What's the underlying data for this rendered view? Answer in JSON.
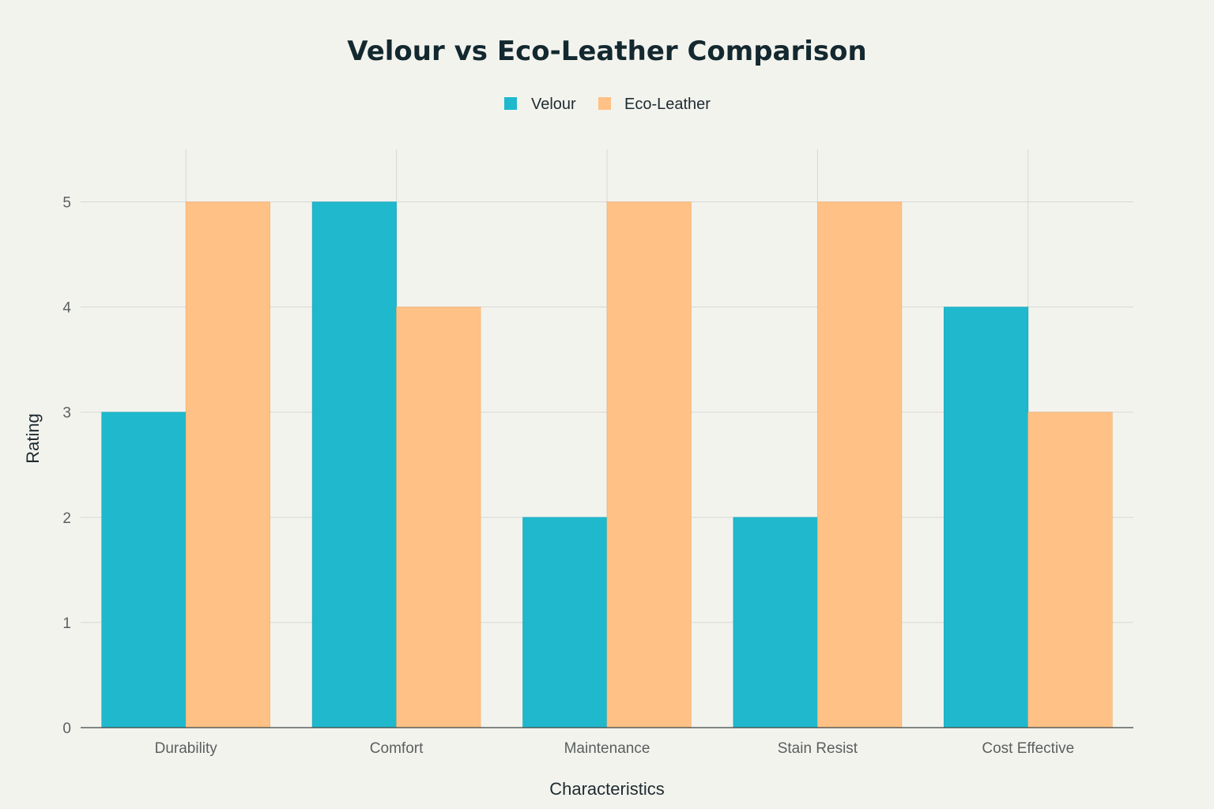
{
  "chart_data": {
    "type": "bar",
    "title": "Velour vs Eco-Leather Comparison",
    "xlabel": "Characteristics",
    "ylabel": "Rating",
    "categories": [
      "Durability",
      "Comfort",
      "Maintenance",
      "Stain Resist",
      "Cost Effective"
    ],
    "series": [
      {
        "name": "Velour",
        "color": "#1fb8cd",
        "values": [
          3,
          5,
          2,
          2,
          4
        ]
      },
      {
        "name": "Eco-Leather",
        "color": "#ffc185",
        "values": [
          5,
          4,
          5,
          5,
          3
        ]
      }
    ],
    "ylim": [
      0,
      5.5
    ],
    "yticks": [
      0,
      1,
      2,
      3,
      4,
      5
    ],
    "grid": true,
    "legend_position": "top-center"
  }
}
